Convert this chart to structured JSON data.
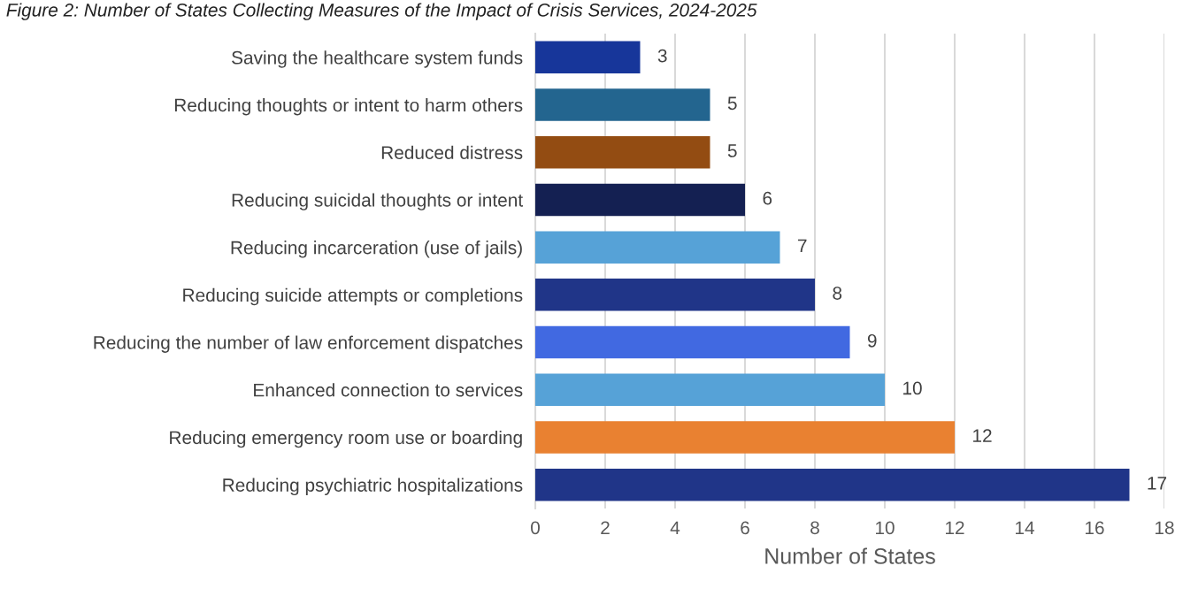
{
  "chart_data": {
    "type": "bar",
    "orientation": "horizontal",
    "title": "Figure 2: Number of States Collecting Measures of the Impact of Crisis Services, 2024-2025",
    "xlabel": "Number of States",
    "categories": [
      "Saving the healthcare system funds",
      "Reducing thoughts or intent to harm others",
      "Reduced distress",
      "Reducing suicidal thoughts or intent",
      "Reducing incarceration (use of jails)",
      "Reducing suicide attempts or completions",
      "Reducing the number of law enforcement dispatches",
      "Enhanced connection to services",
      "Reducing emergency room use or boarding",
      "Reducing psychiatric hospitalizations"
    ],
    "values": [
      3,
      5,
      5,
      6,
      7,
      8,
      9,
      10,
      12,
      17
    ],
    "colors": [
      "#17369a",
      "#23658f",
      "#934c12",
      "#142052",
      "#56a2d7",
      "#203588",
      "#4169e1",
      "#56a2d7",
      "#e98131",
      "#203588"
    ],
    "xlim": [
      0,
      18
    ],
    "xticks": [
      0,
      2,
      4,
      6,
      8,
      10,
      12,
      14,
      16,
      18
    ],
    "grid": "x",
    "data_labels": true
  }
}
